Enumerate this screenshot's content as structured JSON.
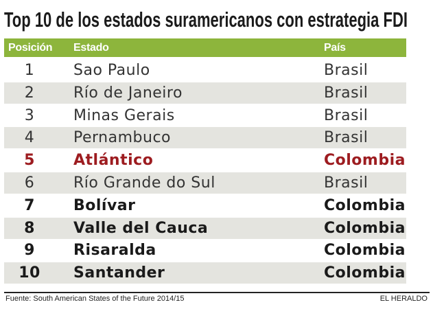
{
  "header": {
    "title": "Top 10 de los estados suramericanos con estrategia FDI"
  },
  "table": {
    "columns": [
      "Posición",
      "Estado",
      "País"
    ],
    "rows": [
      [
        "1",
        "Sao Paulo",
        "Brasil"
      ],
      [
        "2",
        "Río de Janeiro",
        "Brasil"
      ],
      [
        "3",
        "Minas Gerais",
        "Brasil"
      ],
      [
        "4",
        "Pernambuco",
        "Brasil"
      ],
      [
        "5",
        "Atlántico",
        "Colombia"
      ],
      [
        "6",
        "Río Grande do Sul",
        "Brasil"
      ],
      [
        "7",
        "Bolívar",
        "Colombia"
      ],
      [
        "8",
        "Valle del Cauca",
        "Colombia"
      ],
      [
        "9",
        "Risaralda",
        "Colombia"
      ],
      [
        "10",
        "Santander",
        "Colombia"
      ]
    ]
  },
  "footer": {
    "source": "Fuente: South American States of the Future 2014/15",
    "brand": "EL HERALDO"
  }
}
